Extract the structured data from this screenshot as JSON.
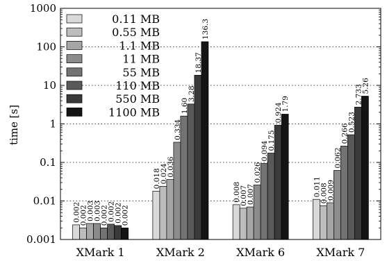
{
  "chart_data": {
    "type": "bar",
    "title": "",
    "xlabel": "",
    "ylabel": "time [s]",
    "yscale": "log",
    "ylim": [
      0.001,
      1000
    ],
    "yticks": [
      {
        "value": 0.001,
        "label": "0.001"
      },
      {
        "value": 0.01,
        "label": "0.01"
      },
      {
        "value": 0.1,
        "label": "0.1"
      },
      {
        "value": 1,
        "label": "1"
      },
      {
        "value": 10,
        "label": "10"
      },
      {
        "value": 100,
        "label": "100"
      },
      {
        "value": 1000,
        "label": "1000"
      }
    ],
    "grid": "horizontal-dotted",
    "legend_position": "top-left",
    "categories": [
      "XMark 1",
      "XMark 2",
      "XMark 6",
      "XMark 7"
    ],
    "series": [
      {
        "name": "0.11 MB",
        "color": "#d9d9d9",
        "values": [
          0.0024,
          0.018,
          0.008,
          0.011
        ],
        "labels": [
          "0.002",
          "0.018",
          "0.008",
          "0.011"
        ]
      },
      {
        "name": "0.55 MB",
        "color": "#bdbdbd",
        "values": [
          0.002,
          0.024,
          0.0065,
          0.0075
        ],
        "labels": [
          "0.002",
          "0.024",
          "0.007",
          "0.008"
        ]
      },
      {
        "name": "1.1 MB",
        "color": "#a6a6a6",
        "values": [
          0.0026,
          0.036,
          0.007,
          0.009
        ],
        "labels": [
          "0.003",
          "0.036",
          "0.007",
          "0.009"
        ]
      },
      {
        "name": "11 MB",
        "color": "#8c8c8c",
        "values": [
          0.0026,
          0.334,
          0.026,
          0.062
        ],
        "labels": [
          "0.003",
          "0.334",
          "0.026",
          "0.062"
        ]
      },
      {
        "name": "55 MB",
        "color": "#737373",
        "values": [
          0.002,
          1.6,
          0.094,
          0.266
        ],
        "labels": [
          "0.002",
          "1.60",
          "0.094",
          "0.266"
        ]
      },
      {
        "name": "110 MB",
        "color": "#595959",
        "values": [
          0.0025,
          3.28,
          0.175,
          0.523
        ],
        "labels": [
          "0.002",
          "3.28",
          "0.175",
          "0.523"
        ]
      },
      {
        "name": "550 MB",
        "color": "#3a3a3a",
        "values": [
          0.0023,
          18.37,
          0.924,
          2.733
        ],
        "labels": [
          "0.002",
          "18.37",
          "0.924",
          "2.733"
        ]
      },
      {
        "name": "1100 MB",
        "color": "#141414",
        "values": [
          0.002,
          136.3,
          1.79,
          5.26
        ],
        "labels": [
          "0.002",
          "136.3",
          "1.79",
          "5.26"
        ]
      }
    ]
  }
}
